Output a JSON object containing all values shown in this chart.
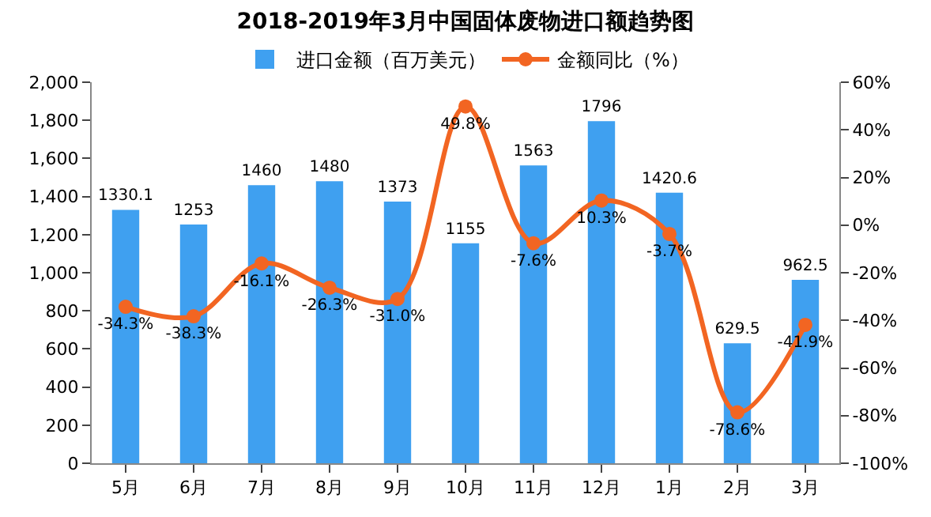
{
  "chart_data": {
    "type": "bar",
    "title": "2018-2019年3月中国固体废物进口额趋势图",
    "categories": [
      "5月",
      "6月",
      "7月",
      "8月",
      "9月",
      "10月",
      "11月",
      "12月",
      "1月",
      "2月",
      "3月"
    ],
    "series": [
      {
        "name": "进口金额（百万美元）",
        "color": "#3fa0f0",
        "values": [
          1330.1,
          1253,
          1460,
          1480,
          1373,
          1155,
          1563,
          1796,
          1420.6,
          629.5,
          962.5
        ],
        "value_labels": [
          "1330.1",
          "1253",
          "1460",
          "1480",
          "1373",
          "1155",
          "1563",
          "1796",
          "1420.6",
          "629.5",
          "962.5"
        ]
      },
      {
        "name": "金额同比（%）",
        "type": "line",
        "axis": "y2",
        "color": "#f26522",
        "values": [
          -34.3,
          -38.3,
          -16.1,
          -26.3,
          -31.0,
          49.8,
          -7.6,
          10.3,
          -3.7,
          -78.6,
          -41.9
        ],
        "value_labels": [
          "-34.3%",
          "-38.3%",
          "-16.1%",
          "-26.3%",
          "-31.0%",
          "49.8%",
          "-7.6%",
          "10.3%",
          "-3.7%",
          "-78.6%",
          "-41.9%"
        ]
      }
    ],
    "ylim": [
      0,
      2000
    ],
    "yticks": [
      0,
      200,
      400,
      600,
      800,
      {
        "value": 1000,
        "label": "1,000"
      },
      {
        "value": 1200,
        "label": "1,200"
      },
      {
        "value": 1400,
        "label": "1,400"
      },
      {
        "value": 1600,
        "label": "1,600"
      },
      {
        "value": 1800,
        "label": "1,800"
      },
      {
        "value": 2000,
        "label": "2,000"
      }
    ],
    "y2lim": [
      -100,
      60
    ],
    "y2ticks": [
      {
        "value": -100,
        "label": "-100%"
      },
      {
        "value": -80,
        "label": "-80%"
      },
      {
        "value": -60,
        "label": "-60%"
      },
      {
        "value": -40,
        "label": "-40%"
      },
      {
        "value": -20,
        "label": "-20%"
      },
      {
        "value": 0,
        "label": "0%"
      },
      {
        "value": 20,
        "label": "20%"
      },
      {
        "value": 40,
        "label": "40%"
      },
      {
        "value": 60,
        "label": "60%"
      }
    ],
    "legend": "top",
    "marker": "circle",
    "grid": false
  }
}
